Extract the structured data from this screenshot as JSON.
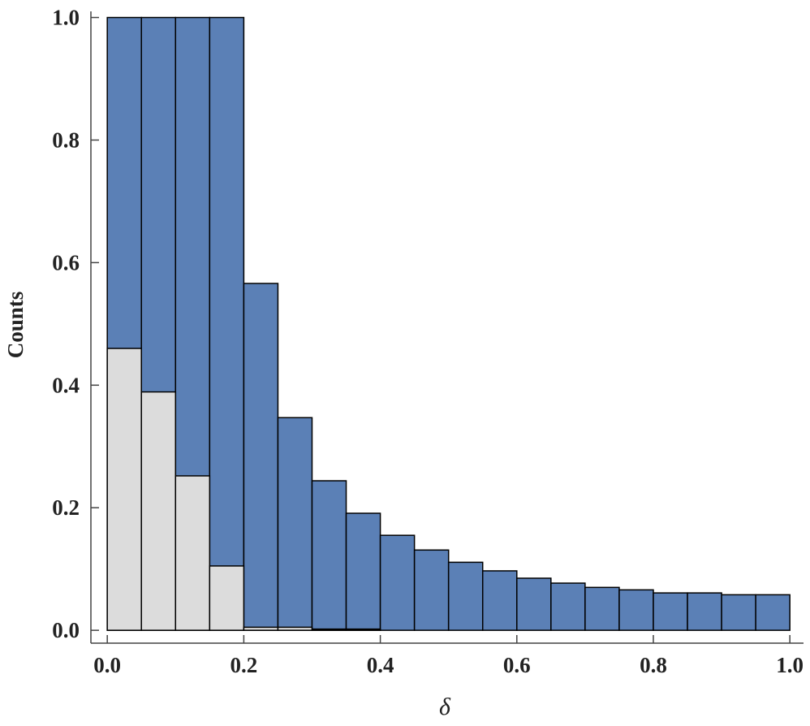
{
  "chart_data": {
    "type": "histogram",
    "x_label": "δ",
    "y_label": "Counts",
    "bins": [
      0,
      0.05,
      0.1,
      0.15,
      0.2,
      0.25,
      0.3,
      0.35,
      0.4,
      0.45,
      0.5,
      0.55,
      0.6,
      0.65,
      0.7,
      0.75,
      0.8,
      0.85,
      0.9,
      0.95,
      1
    ],
    "series": [
      {
        "color": "#5b80b6",
        "values": [
          1.0,
          1.0,
          1.0,
          1.0,
          0.566,
          0.347,
          0.244,
          0.191,
          0.155,
          0.131,
          0.111,
          0.097,
          0.085,
          0.077,
          0.07,
          0.066,
          0.061,
          0.061,
          0.058,
          0.058
        ]
      },
      {
        "color": "#dcdcdc",
        "values": [
          0.46,
          0.389,
          0.252,
          0.105,
          0.005,
          0.005,
          0.002,
          0.002,
          0,
          0,
          0,
          0,
          0,
          0,
          0,
          0,
          0,
          0,
          0,
          0
        ]
      }
    ],
    "xlim": [
      -0.024,
      1.02
    ],
    "ylim": [
      -0.021,
      1.01
    ],
    "xticks": [
      {
        "value": 0,
        "label": "0.0"
      },
      0.2,
      0.4,
      0.6,
      0.8,
      {
        "value": 1,
        "label": "1.0"
      }
    ],
    "yticks": [
      {
        "value": 0,
        "label": "0.0"
      },
      0.2,
      0.4,
      0.6,
      0.8,
      {
        "value": 1,
        "label": "1.0"
      }
    ]
  }
}
